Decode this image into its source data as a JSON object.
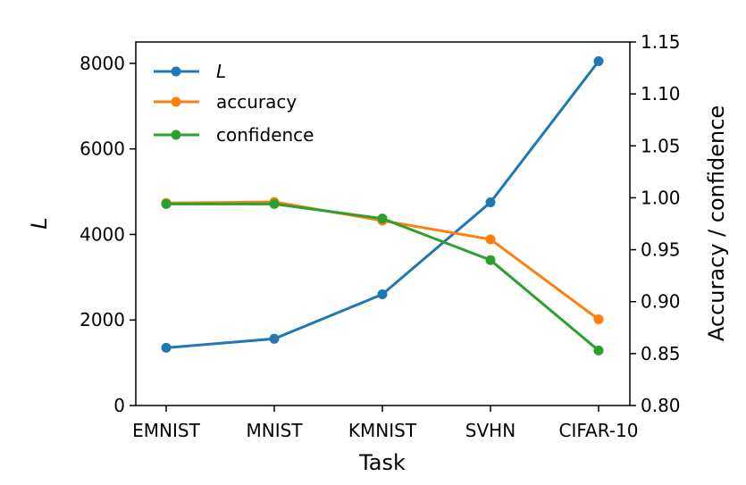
{
  "chart_data": {
    "type": "line",
    "title": "",
    "xlabel": "Task",
    "ylabel_left": "L",
    "ylabel_right": "Accuracy / confidence",
    "categories": [
      "EMNIST",
      "MNIST",
      "KMNIST",
      "SVHN",
      "CIFAR-10"
    ],
    "y_left": {
      "lim": [
        0,
        8500
      ],
      "ticks": [
        0,
        2000,
        4000,
        6000,
        8000
      ]
    },
    "y_right": {
      "lim": [
        0.8,
        1.15
      ],
      "ticks": [
        "0.80",
        "0.85",
        "0.90",
        "0.95",
        "1.00",
        "1.05",
        "1.10",
        "1.15"
      ]
    },
    "series": [
      {
        "name": "L",
        "axis": "left",
        "color": "#1f77b4",
        "values": [
          1350,
          1560,
          2600,
          4750,
          8050
        ]
      },
      {
        "name": "accuracy",
        "axis": "right",
        "color": "#ff7f0e",
        "values": [
          0.995,
          0.996,
          0.978,
          0.96,
          0.883
        ]
      },
      {
        "name": "confidence",
        "axis": "right",
        "color": "#2ca02c",
        "values": [
          0.994,
          0.994,
          0.98,
          0.94,
          0.853
        ]
      }
    ],
    "legend_position": "top-left",
    "grid": false
  }
}
